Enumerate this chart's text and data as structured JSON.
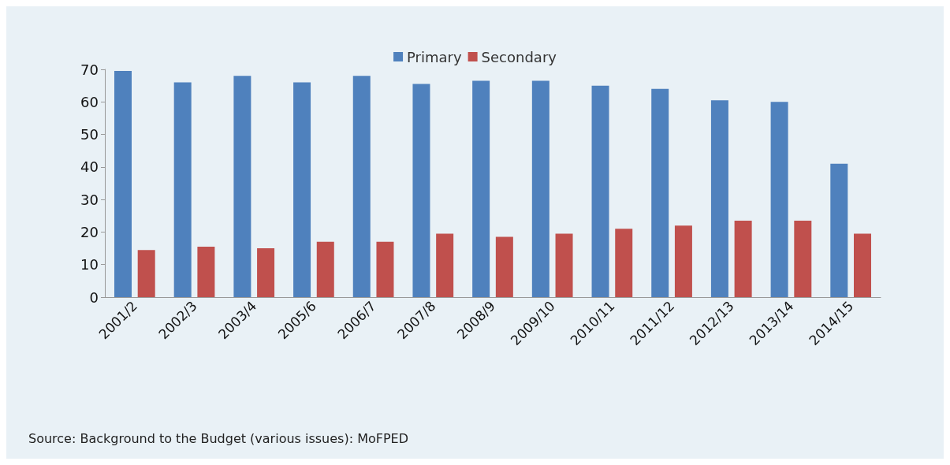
{
  "chart_data": {
    "type": "bar",
    "categories": [
      "2001/2",
      "2002/3",
      "2003/4",
      "2005/6",
      "2006/7",
      "2007/8",
      "2008/9",
      "2009/10",
      "2010/11",
      "2011/12",
      "2012/13",
      "2013/14",
      "2014/15"
    ],
    "series": [
      {
        "name": "Primary",
        "color": "#4f81bd",
        "values": [
          69.5,
          66,
          68,
          66,
          68,
          65.5,
          66.5,
          66.5,
          65,
          64,
          60.5,
          60,
          41
        ]
      },
      {
        "name": "Secondary",
        "color": "#c0504d",
        "values": [
          14.5,
          15.5,
          15,
          17,
          17,
          19.5,
          18.5,
          19.5,
          21,
          22,
          23.5,
          23.5,
          19.5
        ]
      }
    ],
    "ylim": [
      0,
      70
    ],
    "yticks": [
      0,
      10,
      20,
      30,
      40,
      50,
      60,
      70
    ],
    "grid": false,
    "legend": "top",
    "annotations": [
      "Source: Background to the Budget (various issues): MoFPED"
    ]
  }
}
